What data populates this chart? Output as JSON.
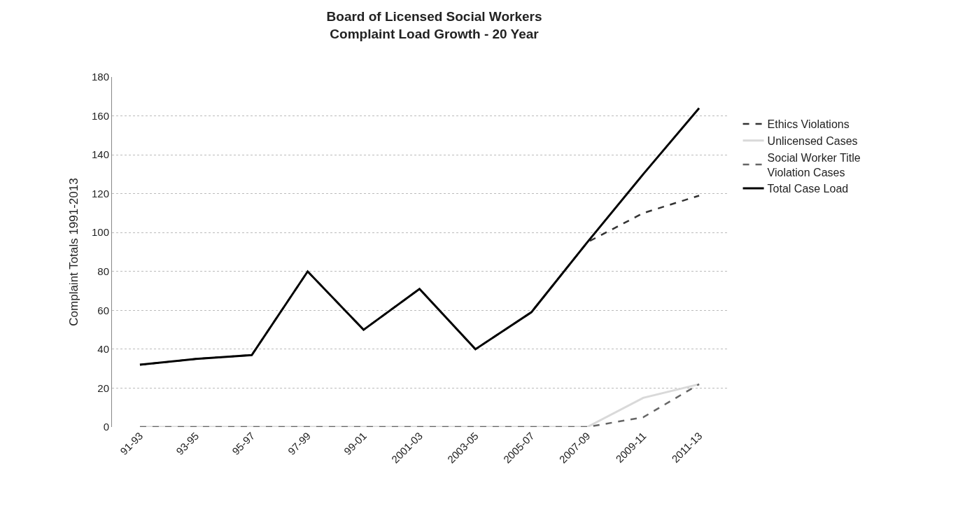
{
  "chart_data": {
    "type": "line",
    "title": "Board of Licensed Social Workers\nComplaint Load Growth - 20 Year",
    "ylabel": "Complaint Totals 1991-2013",
    "categories": [
      "91-93",
      "93-95",
      "95-97",
      "97-99",
      "99-01",
      "2001-03",
      "2003-05",
      "2005-07",
      "2007-09",
      "2009-11",
      "2011-13"
    ],
    "series": [
      {
        "name": "Ethics Violations",
        "color": "#333333",
        "line_style": "dashed",
        "values": [
          32,
          35,
          37,
          80,
          50,
          71,
          40,
          59,
          95,
          110,
          119
        ]
      },
      {
        "name": "Unlicensed Cases",
        "color": "#d9d9d9",
        "line_style": "solid",
        "values": [
          0,
          0,
          0,
          0,
          0,
          0,
          0,
          0,
          0,
          15,
          22
        ]
      },
      {
        "name": "Social Worker Title\nViolation Cases",
        "color": "#666666",
        "line_style": "dashed",
        "values": [
          0,
          0,
          0,
          0,
          0,
          0,
          0,
          0,
          0,
          5,
          22
        ]
      },
      {
        "name": "Total Case Load",
        "color": "#000000",
        "line_style": "solid",
        "values": [
          32,
          35,
          37,
          80,
          50,
          71,
          40,
          59,
          95,
          130,
          164
        ]
      }
    ],
    "ylim": [
      0,
      180
    ],
    "yticks": [
      0,
      20,
      40,
      60,
      80,
      100,
      120,
      140,
      160,
      180
    ],
    "grid": "y",
    "legend": "right",
    "marker": "none"
  }
}
